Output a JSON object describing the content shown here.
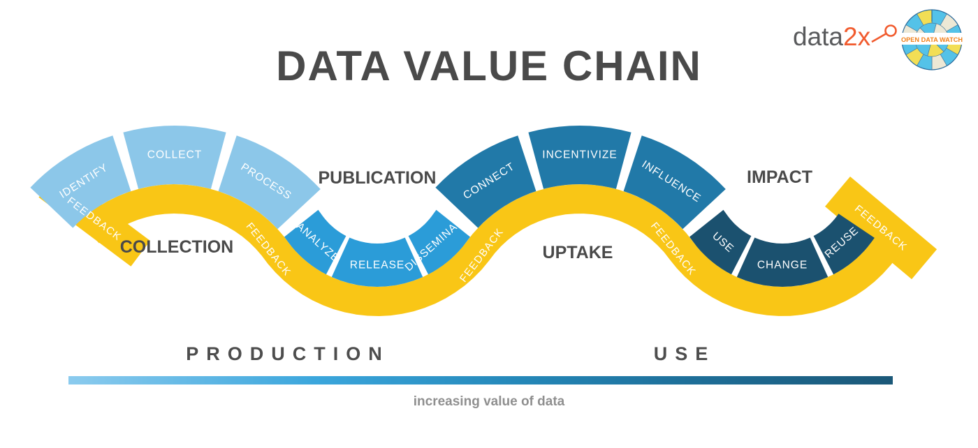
{
  "title": "DATA VALUE CHAIN",
  "header_logos": {
    "data2x_gray": "data",
    "data2x_orange": "2x",
    "odw_text": "OPEN DATA WATCH",
    "odw_text_color": "#F08019",
    "data2x_accent": "#F15B2E"
  },
  "feedback_label": "FEEDBACK",
  "ribbon_color": "#F9C616",
  "label_color": "#4A4A4A",
  "segment_text_color": "#FFFFFF",
  "stages": [
    {
      "id": "collection",
      "label": "COLLECTION",
      "color": "#8CC7E9",
      "segments": [
        "IDENTIFY",
        "COLLECT",
        "PROCESS"
      ]
    },
    {
      "id": "publication",
      "label": "PUBLICATION",
      "color": "#2B9CD8",
      "segments": [
        "ANALYZE",
        "RELEASE",
        "DISSEMINATE"
      ]
    },
    {
      "id": "uptake",
      "label": "UPTAKE",
      "color": "#2179A8",
      "segments": [
        "CONNECT",
        "INCENTIVIZE",
        "INFLUENCE"
      ]
    },
    {
      "id": "impact",
      "label": "IMPACT",
      "color": "#1B516F",
      "segments": [
        "USE",
        "CHANGE",
        "REUSE"
      ]
    }
  ],
  "bottom": {
    "left_label": "PRODUCTION",
    "right_label": "USE",
    "caption": "increasing value of data",
    "gradient_start": "#8BCBEE",
    "gradient_end": "#1B5878"
  }
}
